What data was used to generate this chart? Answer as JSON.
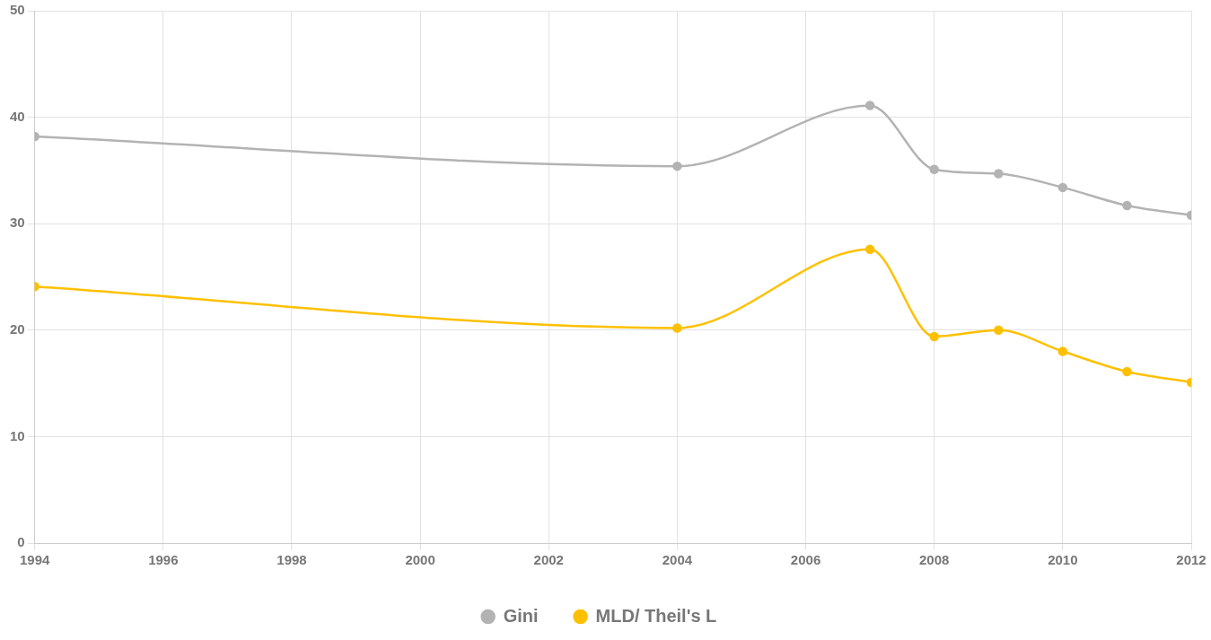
{
  "chart_data": {
    "type": "line",
    "x": [
      1994,
      2004,
      2007,
      2008,
      2009,
      2010,
      2011,
      2012
    ],
    "series": [
      {
        "name": "Gini",
        "color": "#b3b3b3",
        "values": [
          38.2,
          35.4,
          41.1,
          35.1,
          34.7,
          33.4,
          31.7,
          30.8
        ]
      },
      {
        "name": "MLD/ Theil's L",
        "color": "#ffc000",
        "values": [
          24.1,
          20.2,
          27.6,
          19.4,
          20.0,
          18.0,
          16.1,
          15.1
        ]
      }
    ],
    "xlim": [
      1994,
      2012
    ],
    "xticks": [
      1994,
      1996,
      1998,
      2000,
      2002,
      2004,
      2006,
      2008,
      2010,
      2012
    ],
    "ylim": [
      0,
      50
    ],
    "yticks": [
      0,
      10,
      20,
      30,
      40,
      50
    ],
    "grid": true,
    "legend": "bottom",
    "marker": "circle",
    "line_style": "solid"
  }
}
